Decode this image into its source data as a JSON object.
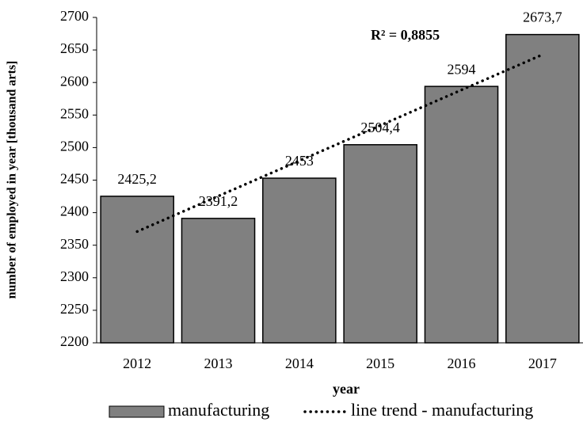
{
  "chart_data": {
    "type": "bar",
    "x_label": "year",
    "y_label": "number of employed in year [thousand arts]",
    "annotation": "R² = 0,8855",
    "categories": [
      "2012",
      "2013",
      "2014",
      "2015",
      "2016",
      "2017"
    ],
    "series": [
      {
        "name": "manufacturing",
        "type": "bar",
        "color": "#808080",
        "values": [
          2425.2,
          2391.2,
          2453,
          2504.4,
          2594,
          2673.7
        ],
        "value_labels": [
          "2425,2",
          "2391,2",
          "2453",
          "2504,4",
          "2594",
          "2673,7"
        ]
      },
      {
        "name": "line trend - manufacturing",
        "type": "line",
        "color": "#000000",
        "values": [
          2371.0,
          2425.4,
          2479.7,
          2534.1,
          2588.5,
          2642.8
        ]
      }
    ],
    "ylim": [
      2200,
      2700
    ],
    "yticks": [
      2200,
      2250,
      2300,
      2350,
      2400,
      2450,
      2500,
      2550,
      2600,
      2650,
      2700
    ]
  }
}
